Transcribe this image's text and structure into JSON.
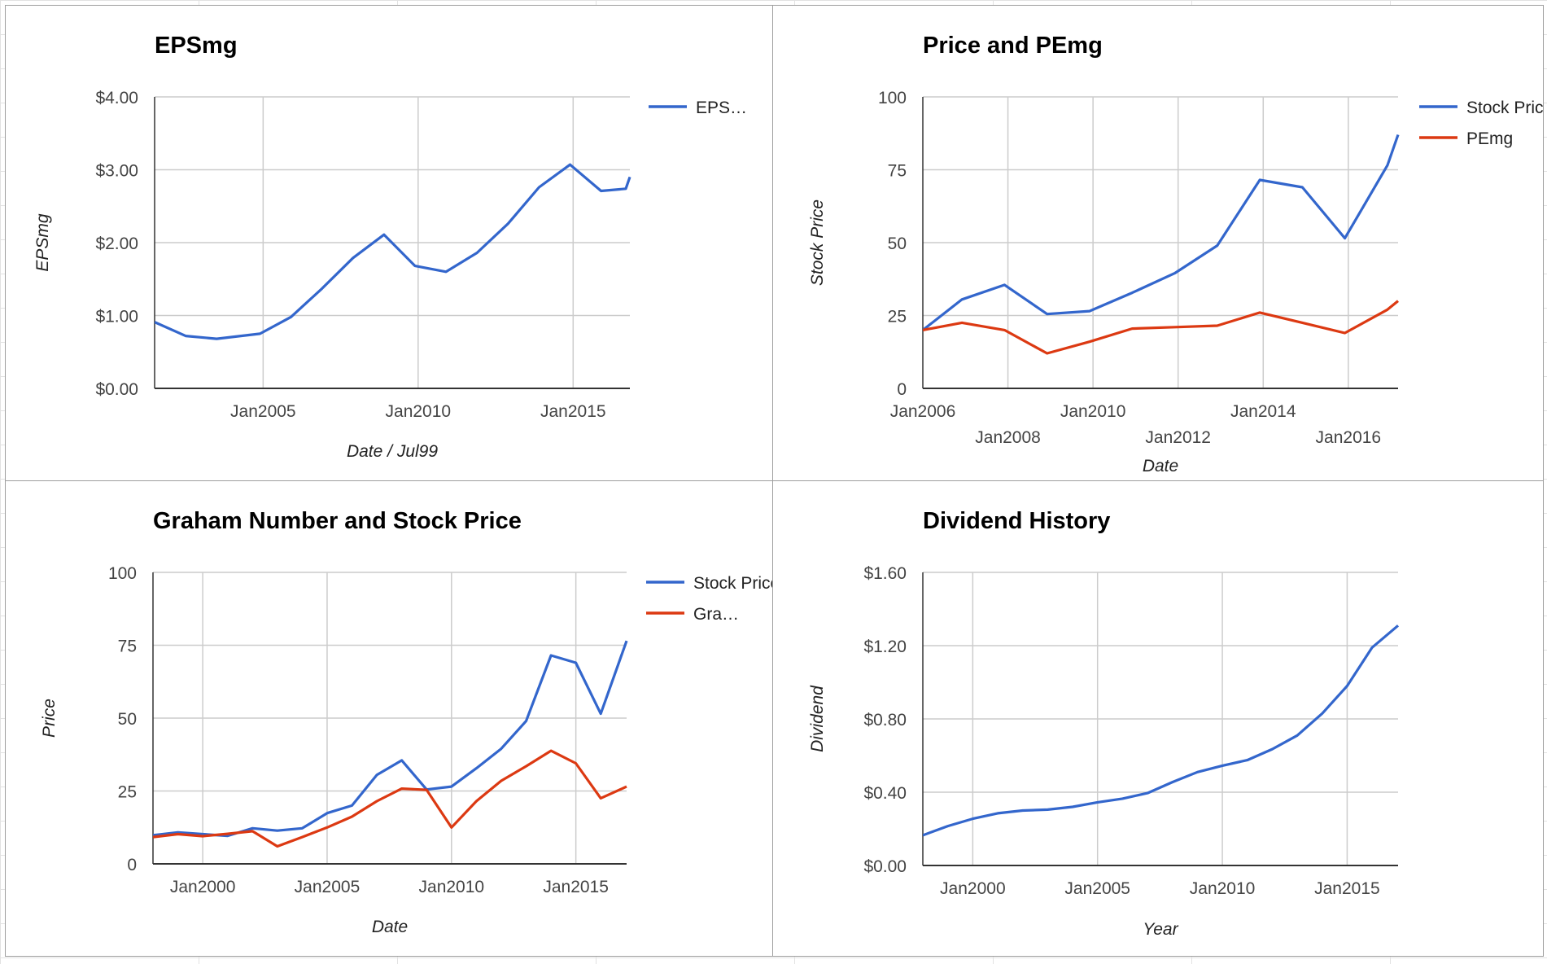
{
  "charts": {
    "colors": {
      "blue": "#3366cc",
      "red": "#dc3912",
      "grid": "#cccccc",
      "axis": "#333333",
      "text": "#444444",
      "title": "#000000"
    }
  },
  "chart_data": [
    {
      "type": "line",
      "title": "EPSmg",
      "xlabel": "Date / Jul99",
      "ylabel": "EPSmg",
      "ylim": [
        0,
        4
      ],
      "xlim": [
        2001.5,
        2016.83
      ],
      "yticks": [
        "$0.00",
        "$1.00",
        "$2.00",
        "$3.00",
        "$4.00"
      ],
      "ytick_values": [
        0,
        1,
        2,
        3,
        4
      ],
      "xticks": [
        "Jan2005",
        "Jan2010",
        "Jan2015"
      ],
      "xtick_values": [
        2005,
        2010,
        2015
      ],
      "grid": true,
      "legend_position": "right",
      "series": [
        {
          "name": "EPS…",
          "color": "#3366cc",
          "x": [
            2001.5,
            2002.5,
            2003.5,
            2004.9,
            2005.9,
            2006.9,
            2007.9,
            2008.9,
            2009.9,
            2010.9,
            2011.9,
            2012.9,
            2013.9,
            2014.9,
            2015.9,
            2016.7,
            2016.83
          ],
          "values": [
            0.91,
            0.72,
            0.68,
            0.75,
            0.98,
            1.37,
            1.79,
            2.11,
            1.68,
            1.6,
            1.86,
            2.26,
            2.76,
            3.07,
            2.71,
            2.74,
            2.9
          ]
        }
      ]
    },
    {
      "type": "line",
      "title": "Price and PEmg",
      "xlabel": "Date",
      "ylabel": "Stock Price",
      "ylim": [
        0,
        100
      ],
      "xlim": [
        2006,
        2017.17
      ],
      "yticks": [
        "0",
        "25",
        "50",
        "75",
        "100"
      ],
      "ytick_values": [
        0,
        25,
        50,
        75,
        100
      ],
      "xticks": [
        "Jan2006",
        "Jan2008",
        "Jan2010",
        "Jan2012",
        "Jan2014",
        "Jan2016"
      ],
      "xtick_values": [
        2006,
        2008,
        2010,
        2012,
        2014,
        2016
      ],
      "grid": true,
      "legend_position": "right",
      "series": [
        {
          "name": "Stock Price",
          "color": "#3366cc",
          "x": [
            2006,
            2006.92,
            2007.92,
            2008.92,
            2009.92,
            2010.92,
            2011.92,
            2012.92,
            2013.92,
            2014.92,
            2015.92,
            2016.92,
            2017.17
          ],
          "values": [
            20,
            30.5,
            35.5,
            25.5,
            26.5,
            32.8,
            39.5,
            49,
            71.5,
            69,
            51.5,
            76.5,
            87
          ]
        },
        {
          "name": "PEmg",
          "color": "#dc3912",
          "x": [
            2006,
            2006.92,
            2007.92,
            2008.92,
            2009.92,
            2010.92,
            2011.92,
            2012.92,
            2013.92,
            2014.92,
            2015.92,
            2016.92,
            2017.17
          ],
          "values": [
            20,
            22.5,
            20,
            12,
            16,
            20.5,
            21,
            21.5,
            26,
            22.5,
            19,
            27,
            30
          ]
        }
      ]
    },
    {
      "type": "line",
      "title": "Graham Number and Stock Price",
      "xlabel": "Date",
      "ylabel": "Price",
      "ylim": [
        0,
        100
      ],
      "xlim": [
        1998,
        2017.04
      ],
      "yticks": [
        "0",
        "25",
        "50",
        "75",
        "100"
      ],
      "ytick_values": [
        0,
        25,
        50,
        75,
        100
      ],
      "xticks": [
        "Jan2000",
        "Jan2005",
        "Jan2010",
        "Jan2015"
      ],
      "xtick_values": [
        2000,
        2005,
        2010,
        2015
      ],
      "grid": true,
      "legend_position": "right",
      "series": [
        {
          "name": "Stock Price",
          "color": "#3366cc",
          "x": [
            1998,
            1999,
            2000,
            2001,
            2002,
            2003,
            2004,
            2005,
            2006,
            2007,
            2008,
            2009,
            2010,
            2011,
            2012,
            2013,
            2014,
            2015,
            2016,
            2017.04
          ],
          "values": [
            9.8,
            10.8,
            10.2,
            9.6,
            12.2,
            11.4,
            12.2,
            17.4,
            20,
            30.5,
            35.5,
            25.5,
            26.5,
            32.8,
            39.5,
            49,
            71.5,
            69,
            51.5,
            76.5
          ]
        },
        {
          "name": "Gra…",
          "color": "#dc3912",
          "x": [
            1998,
            1999,
            2000,
            2001,
            2002,
            2003,
            2004,
            2005,
            2006,
            2007,
            2008,
            2009,
            2010,
            2011,
            2012,
            2013,
            2014,
            2015,
            2016,
            2017.04
          ],
          "values": [
            9.2,
            10.2,
            9.5,
            10.3,
            11.2,
            6,
            9.2,
            12.5,
            16.2,
            21.5,
            25.8,
            25.4,
            12.5,
            21.5,
            28.5,
            33.5,
            38.8,
            34.5,
            22.5,
            26.5
          ]
        }
      ]
    },
    {
      "type": "line",
      "title": "Dividend History",
      "xlabel": "Year",
      "ylabel": "Dividend",
      "ylim": [
        0,
        1.6
      ],
      "xlim": [
        1998,
        2017.04
      ],
      "yticks": [
        "$0.00",
        "$0.40",
        "$0.80",
        "$1.20",
        "$1.60"
      ],
      "ytick_values": [
        0,
        0.4,
        0.8,
        1.2,
        1.6
      ],
      "xticks": [
        "Jan2000",
        "Jan2005",
        "Jan2010",
        "Jan2015"
      ],
      "xtick_values": [
        2000,
        2005,
        2010,
        2015
      ],
      "grid": true,
      "legend_position": "none",
      "series": [
        {
          "name": "",
          "color": "#3366cc",
          "x": [
            1998,
            1999,
            2000,
            2001,
            2002,
            2003,
            2004,
            2005,
            2006,
            2007,
            2008,
            2009,
            2010,
            2011,
            2012,
            2013,
            2014,
            2015,
            2016,
            2017.04
          ],
          "values": [
            0.165,
            0.215,
            0.255,
            0.285,
            0.3,
            0.305,
            0.32,
            0.345,
            0.365,
            0.395,
            0.455,
            0.51,
            0.545,
            0.575,
            0.635,
            0.71,
            0.83,
            0.98,
            1.19,
            1.31
          ]
        }
      ]
    }
  ]
}
